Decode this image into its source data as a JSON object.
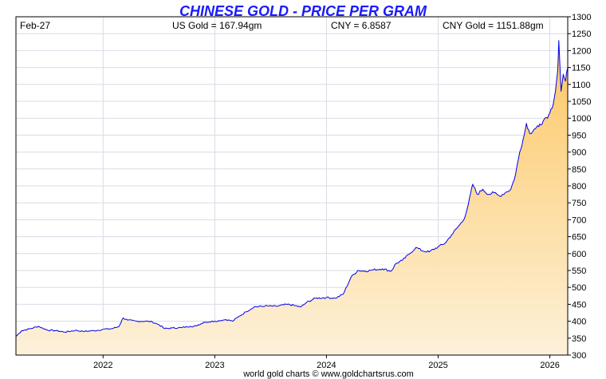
{
  "chart_data": {
    "type": "area",
    "title": "CHINESE GOLD - PRICE PER GRAM",
    "date_label": "Feb-27",
    "readouts": [
      "US Gold = 167.94gm",
      "CNY = 6.8587",
      "CNY Gold = 1151.88gm"
    ],
    "footer": "world gold charts © www.goldchartsrus.com",
    "xlabel": "",
    "ylabel": "",
    "ylim": [
      300,
      1300
    ],
    "yticks": [
      300,
      350,
      400,
      450,
      500,
      550,
      600,
      650,
      700,
      750,
      800,
      850,
      900,
      950,
      1000,
      1050,
      1100,
      1150,
      1200,
      1250,
      1300
    ],
    "xlim": [
      2021.22,
      2026.16
    ],
    "xticks": [
      {
        "value": 2022,
        "label": "2022"
      },
      {
        "value": 2023,
        "label": "2023"
      },
      {
        "value": 2024,
        "label": "2024"
      },
      {
        "value": 2025,
        "label": "2025"
      },
      {
        "value": 2026,
        "label": "2026"
      }
    ],
    "grid": true,
    "colors": {
      "line": "#0000ee",
      "title": "#1a1aff",
      "fill_top": "#fdc764",
      "fill_bottom": "#fdf1da",
      "grid": "#d9dbe6",
      "axis": "#000000"
    },
    "series": [
      {
        "values": [
          [
            2021.22,
            355
          ],
          [
            2021.27,
            372
          ],
          [
            2021.35,
            378
          ],
          [
            2021.42,
            385
          ],
          [
            2021.5,
            374
          ],
          [
            2021.58,
            372
          ],
          [
            2021.66,
            368
          ],
          [
            2021.75,
            373
          ],
          [
            2021.82,
            370
          ],
          [
            2021.92,
            372
          ],
          [
            2022.0,
            376
          ],
          [
            2022.08,
            378
          ],
          [
            2022.14,
            384
          ],
          [
            2022.18,
            410
          ],
          [
            2022.22,
            403
          ],
          [
            2022.3,
            400
          ],
          [
            2022.38,
            400
          ],
          [
            2022.44,
            398
          ],
          [
            2022.5,
            390
          ],
          [
            2022.55,
            378
          ],
          [
            2022.62,
            380
          ],
          [
            2022.7,
            381
          ],
          [
            2022.78,
            385
          ],
          [
            2022.84,
            386
          ],
          [
            2022.9,
            397
          ],
          [
            2023.0,
            400
          ],
          [
            2023.1,
            405
          ],
          [
            2023.16,
            400
          ],
          [
            2023.22,
            415
          ],
          [
            2023.28,
            428
          ],
          [
            2023.35,
            442
          ],
          [
            2023.45,
            445
          ],
          [
            2023.55,
            444
          ],
          [
            2023.65,
            450
          ],
          [
            2023.72,
            446
          ],
          [
            2023.77,
            442
          ],
          [
            2023.82,
            455
          ],
          [
            2023.9,
            468
          ],
          [
            2024.0,
            470
          ],
          [
            2024.08,
            468
          ],
          [
            2024.15,
            480
          ],
          [
            2024.22,
            530
          ],
          [
            2024.28,
            550
          ],
          [
            2024.35,
            548
          ],
          [
            2024.42,
            552
          ],
          [
            2024.5,
            555
          ],
          [
            2024.58,
            548
          ],
          [
            2024.62,
            570
          ],
          [
            2024.68,
            580
          ],
          [
            2024.74,
            598
          ],
          [
            2024.8,
            618
          ],
          [
            2024.86,
            608
          ],
          [
            2024.92,
            605
          ],
          [
            2025.0,
            620
          ],
          [
            2025.06,
            630
          ],
          [
            2025.12,
            655
          ],
          [
            2025.18,
            680
          ],
          [
            2025.23,
            700
          ],
          [
            2025.27,
            745
          ],
          [
            2025.31,
            805
          ],
          [
            2025.35,
            775
          ],
          [
            2025.4,
            790
          ],
          [
            2025.45,
            775
          ],
          [
            2025.5,
            780
          ],
          [
            2025.55,
            770
          ],
          [
            2025.6,
            780
          ],
          [
            2025.65,
            790
          ],
          [
            2025.69,
            830
          ],
          [
            2025.73,
            900
          ],
          [
            2025.77,
            950
          ],
          [
            2025.79,
            985
          ],
          [
            2025.82,
            955
          ],
          [
            2025.86,
            968
          ],
          [
            2025.9,
            975
          ],
          [
            2025.94,
            992
          ],
          [
            2025.98,
            1000
          ],
          [
            2026.02,
            1030
          ],
          [
            2026.05,
            1080
          ],
          [
            2026.07,
            1140
          ],
          [
            2026.08,
            1230
          ],
          [
            2026.1,
            1080
          ],
          [
            2026.12,
            1130
          ],
          [
            2026.14,
            1110
          ],
          [
            2026.16,
            1150
          ]
        ]
      }
    ]
  }
}
